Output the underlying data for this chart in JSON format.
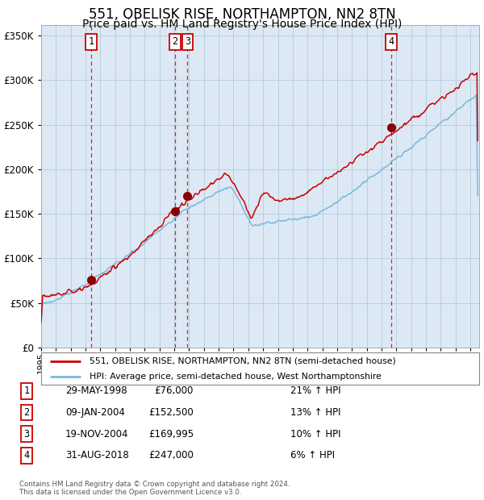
{
  "title": "551, OBELISK RISE, NORTHAMPTON, NN2 8TN",
  "subtitle": "Price paid vs. HM Land Registry's House Price Index (HPI)",
  "title_fontsize": 12,
  "subtitle_fontsize": 10,
  "background_color": "#ffffff",
  "plot_bg_color": "#dce9f5",
  "yticks": [
    0,
    50000,
    100000,
    150000,
    200000,
    250000,
    300000,
    350000
  ],
  "hpi_color": "#7ab8d9",
  "price_color": "#cc0000",
  "marker_color": "#8b0000",
  "vline_color": "#dd2222",
  "grid_color": "#b8cfe0",
  "sale_years": [
    1998.38,
    2004.03,
    2004.89,
    2018.66
  ],
  "sale_prices": [
    76000,
    152500,
    169995,
    247000
  ],
  "sale_labels": [
    "1",
    "2",
    "3",
    "4"
  ],
  "legend_entries": [
    "551, OBELISK RISE, NORTHAMPTON, NN2 8TN (semi-detached house)",
    "HPI: Average price, semi-detached house, West Northamptonshire"
  ],
  "table_rows": [
    {
      "num": "1",
      "date": "29-MAY-1998",
      "price": "£76,000",
      "change": "21% ↑ HPI"
    },
    {
      "num": "2",
      "date": "09-JAN-2004",
      "price": "£152,500",
      "change": "13% ↑ HPI"
    },
    {
      "num": "3",
      "date": "19-NOV-2004",
      "price": "£169,995",
      "change": "10% ↑ HPI"
    },
    {
      "num": "4",
      "date": "31-AUG-2018",
      "price": "£247,000",
      "change": "6% ↑ HPI"
    }
  ],
  "footnote": "Contains HM Land Registry data © Crown copyright and database right 2024.\nThis data is licensed under the Open Government Licence v3.0."
}
